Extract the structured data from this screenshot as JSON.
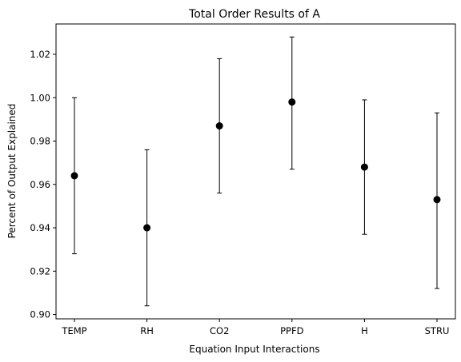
{
  "chart_data": {
    "type": "scatter",
    "title": "Total Order Results of A",
    "xlabel": "Equation Input Interactions",
    "ylabel": "Percent of Output Explained",
    "categories": [
      "TEMP",
      "RH",
      "CO2",
      "PPFD",
      "H",
      "STRU"
    ],
    "series": [
      {
        "values": [
          0.964,
          0.94,
          0.987,
          0.998,
          0.968,
          0.953
        ],
        "error_lower": [
          0.928,
          0.904,
          0.956,
          0.967,
          0.937,
          0.912
        ],
        "error_upper": [
          1.0,
          0.976,
          1.018,
          1.028,
          0.999,
          0.993
        ]
      }
    ],
    "ylim": [
      0.898,
      1.034
    ],
    "yticks": [
      "0.90",
      "0.92",
      "0.94",
      "0.96",
      "0.98",
      "1.00",
      "1.02"
    ],
    "grid": false,
    "colors": {
      "marker": "#000000",
      "errorbar": "#000000"
    }
  }
}
